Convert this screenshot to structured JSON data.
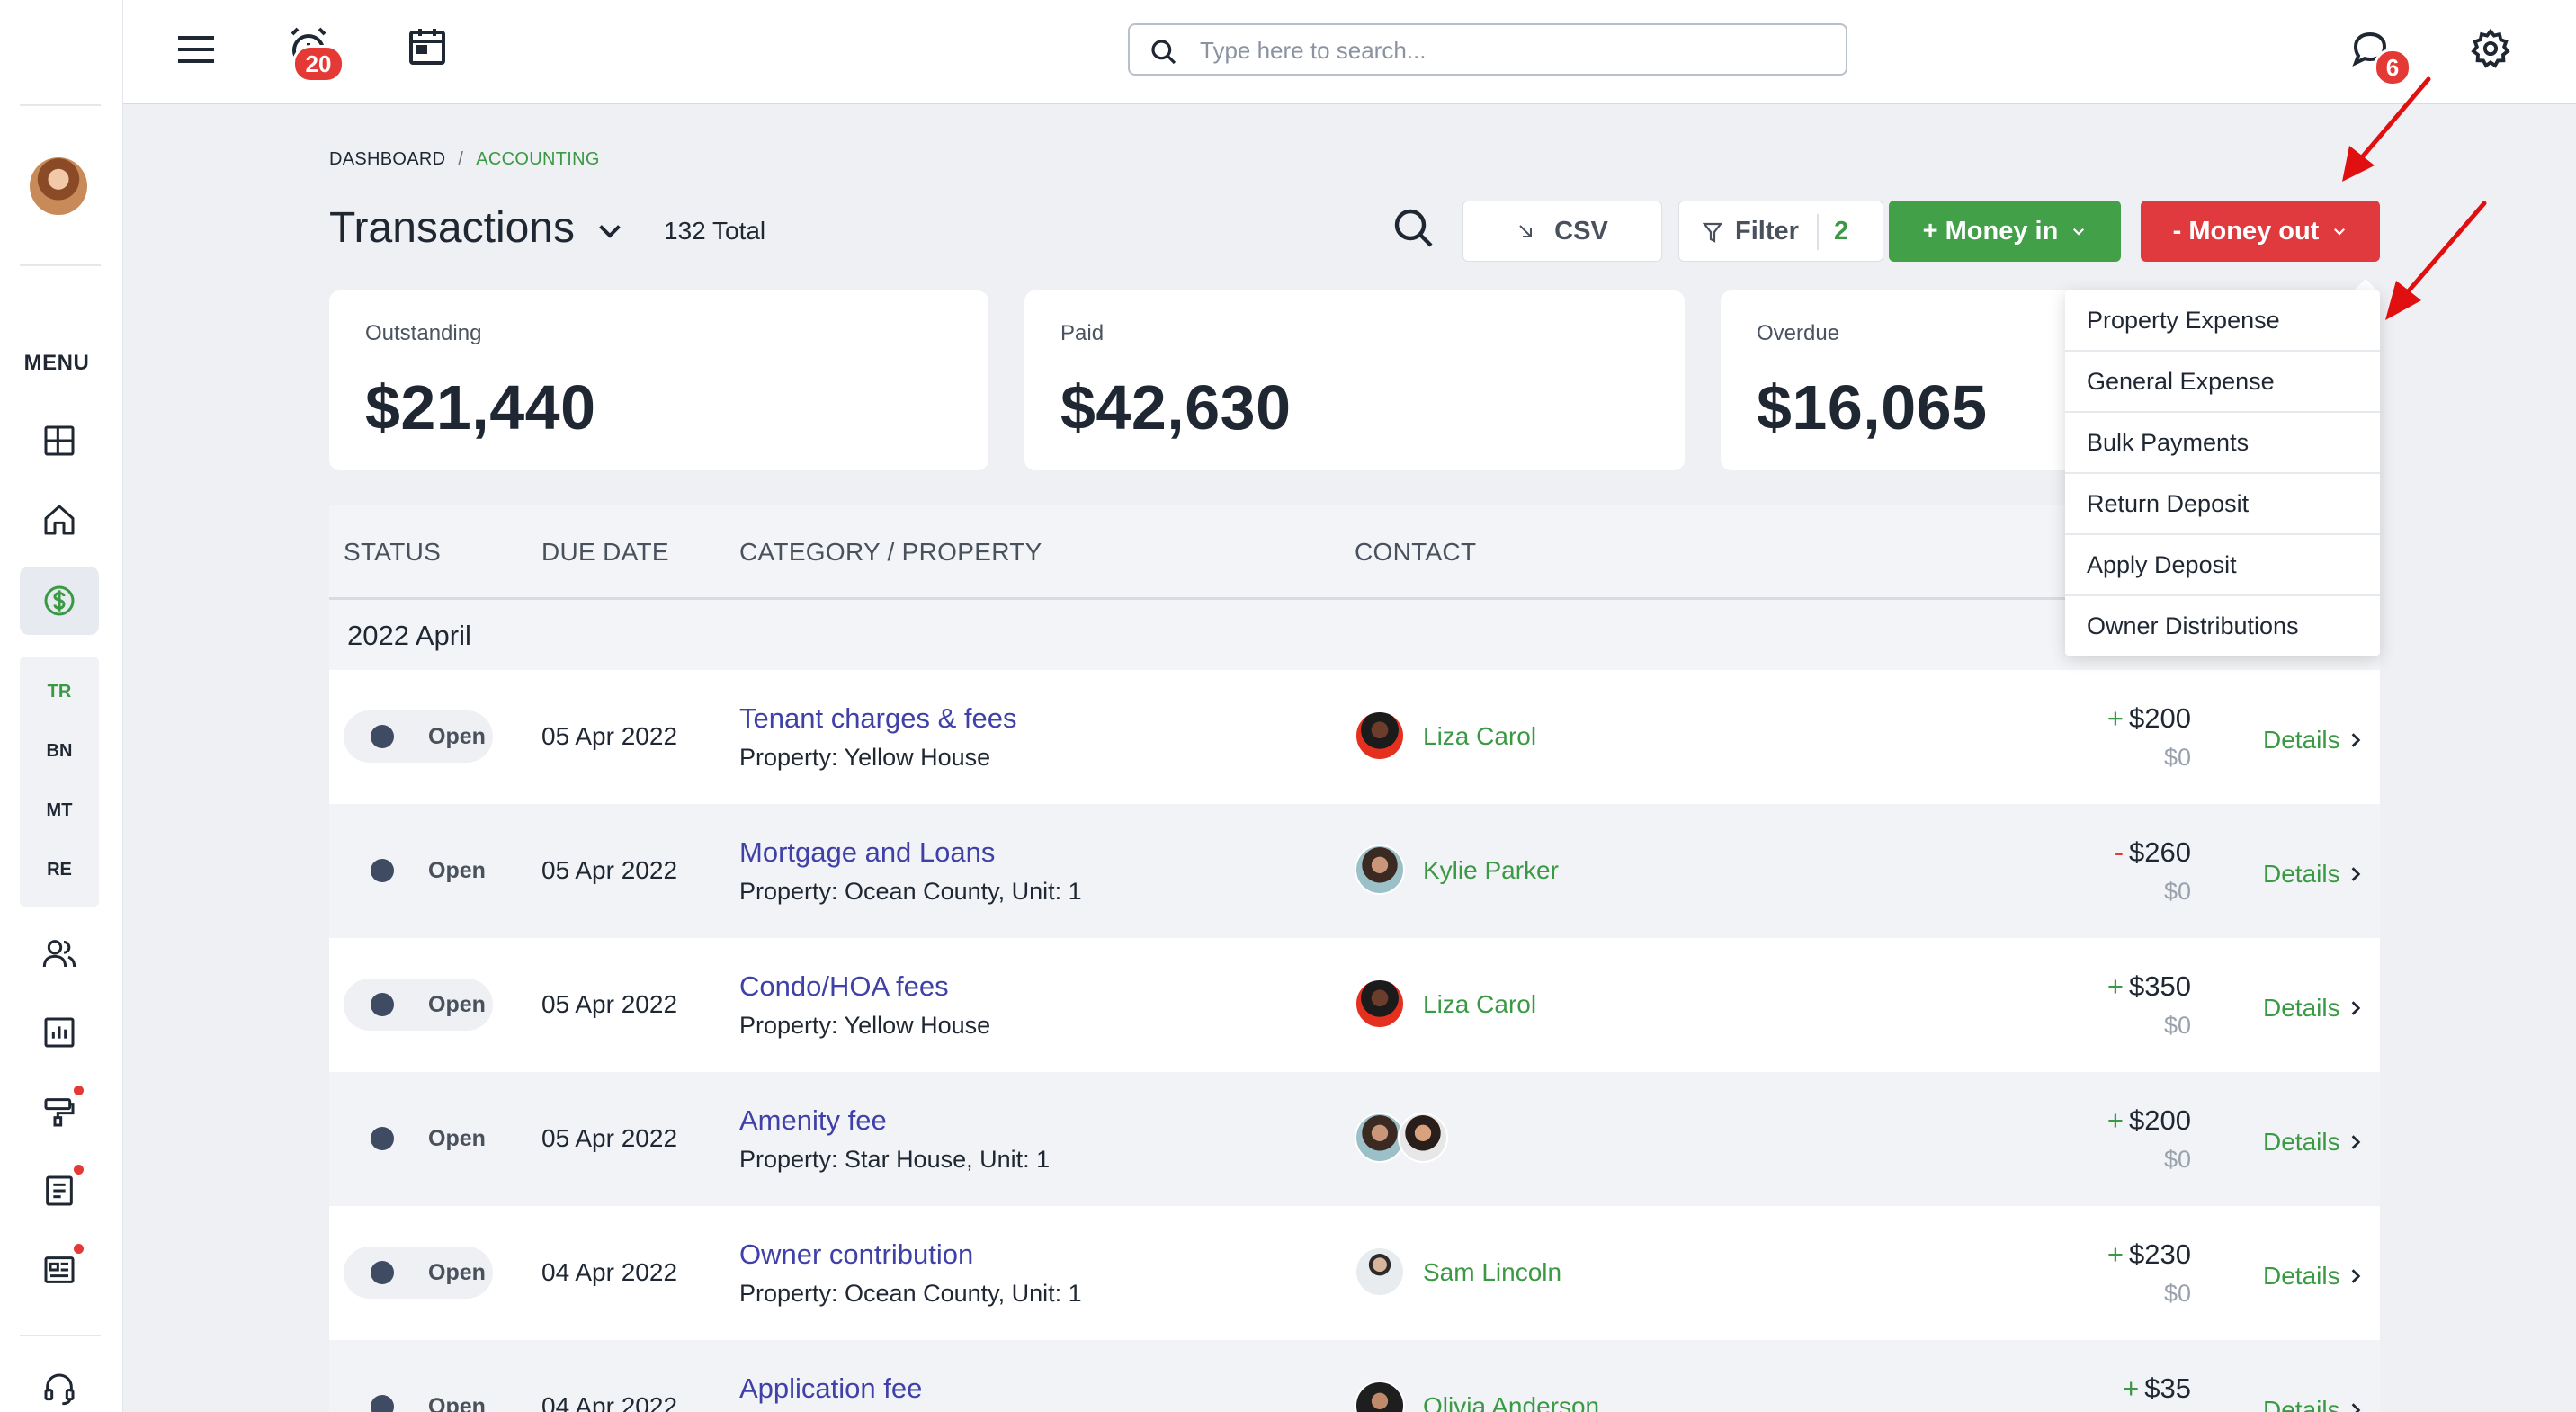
{
  "topbar": {
    "menu_icon": "hamburger-icon",
    "alarm_icon": "alarm-clock-icon",
    "alarm_count": "20",
    "calendar_icon": "calendar-icon",
    "search_placeholder": "Type here to search...",
    "chat_icon": "chat-bubble-icon",
    "chat_count": "6",
    "settings_icon": "gear-icon"
  },
  "sidebar": {
    "menu_label": "MENU",
    "items": [
      "dashboard-icon",
      "home-icon",
      "dollar-icon",
      "people-icon",
      "report-chart-icon",
      "maintenance-icon",
      "document-icon",
      "newspaper-icon",
      "headset-icon"
    ],
    "sub_items": [
      "TR",
      "BN",
      "MT",
      "RE"
    ],
    "active_sub": "TR"
  },
  "breadcrumb": {
    "home": "DASHBOARD",
    "separator": "/",
    "current": "ACCOUNTING"
  },
  "header": {
    "title": "Transactions",
    "total": "132 Total",
    "csv_label": "CSV",
    "filter_label": "Filter",
    "filter_count": "2",
    "money_in_label": "+ Money in",
    "money_out_label": "- Money out"
  },
  "summary": {
    "outstanding_label": "Outstanding",
    "outstanding_value": "$21,440",
    "paid_label": "Paid",
    "paid_value": "$42,630",
    "overdue_label": "Overdue",
    "overdue_value": "$16,065"
  },
  "table": {
    "columns": [
      "STATUS",
      "DUE DATE",
      "CATEGORY / PROPERTY",
      "CONTACT"
    ],
    "group": "2022 April",
    "details_label": "Details",
    "rows": [
      {
        "status": "Open",
        "due": "05 Apr 2022",
        "category": "Tenant charges & fees",
        "property": "Property: Yellow House",
        "contact": "Liza Carol",
        "sign": "+",
        "amount": "$200",
        "sub": "$0"
      },
      {
        "status": "Open",
        "due": "05 Apr 2022",
        "category": "Mortgage and Loans",
        "property": "Property: Ocean County, Unit: 1",
        "contact": "Kylie Parker",
        "sign": "-",
        "amount": "$260",
        "sub": "$0"
      },
      {
        "status": "Open",
        "due": "05 Apr 2022",
        "category": "Condo/HOA fees",
        "property": "Property: Yellow House",
        "contact": "Liza Carol",
        "sign": "+",
        "amount": "$350",
        "sub": "$0"
      },
      {
        "status": "Open",
        "due": "05 Apr 2022",
        "category": "Amenity fee",
        "property": "Property: Star House, Unit: 1",
        "contact": "",
        "sign": "+",
        "amount": "$200",
        "sub": "$0"
      },
      {
        "status": "Open",
        "due": "04 Apr 2022",
        "category": "Owner contribution",
        "property": "Property: Ocean County, Unit: 1",
        "contact": "Sam Lincoln",
        "sign": "+",
        "amount": "$230",
        "sub": "$0"
      },
      {
        "status": "Open",
        "due": "04 Apr 2022",
        "category": "Application fee",
        "property": "",
        "contact": "Olivia Anderson",
        "sign": "+",
        "amount": "$35",
        "sub": ""
      }
    ]
  },
  "money_out_menu": {
    "items": [
      "Property Expense",
      "General Expense",
      "Bulk Payments",
      "Return Deposit",
      "Apply Deposit",
      "Owner Distributions"
    ]
  },
  "colors": {
    "accent_green": "#41a048",
    "accent_red": "#e0393e",
    "link_purple": "#3f41a8",
    "status_dot": "#3e4b63"
  }
}
